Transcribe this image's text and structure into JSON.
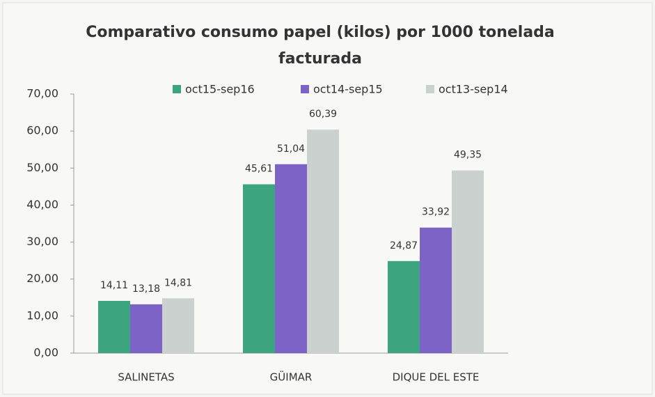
{
  "chart_data": {
    "type": "bar",
    "title": "Comparativo consumo papel (kilos) por 1000 tonelada facturada",
    "categories": [
      "SALINETAS",
      "GÜIMAR",
      "DIQUE DEL ESTE"
    ],
    "series": [
      {
        "name": "oct15-sep16",
        "color": "#3da57e",
        "values": [
          14.11,
          45.61,
          24.87
        ],
        "value_labels": [
          "14,11",
          "45,61",
          "24,87"
        ]
      },
      {
        "name": "oct14-sep15",
        "color": "#7d63c6",
        "values": [
          13.18,
          51.04,
          33.92
        ],
        "value_labels": [
          "13,18",
          "51,04",
          "33,92"
        ]
      },
      {
        "name": "oct13-sep14",
        "color": "#cbd1ce",
        "values": [
          14.81,
          60.39,
          49.35
        ],
        "value_labels": [
          "14,81",
          "60,39",
          "49,35"
        ]
      }
    ],
    "ylim": [
      0,
      70
    ],
    "yticks": [
      {
        "value": 0,
        "label": "0,00"
      },
      {
        "value": 10,
        "label": "10,00"
      },
      {
        "value": 20,
        "label": "20,00"
      },
      {
        "value": 30,
        "label": "30,00"
      },
      {
        "value": 40,
        "label": "40,00"
      },
      {
        "value": 50,
        "label": "50,00"
      },
      {
        "value": 60,
        "label": "60,00"
      },
      {
        "value": 70,
        "label": "70,00"
      }
    ],
    "grid": false,
    "legend": "top"
  }
}
